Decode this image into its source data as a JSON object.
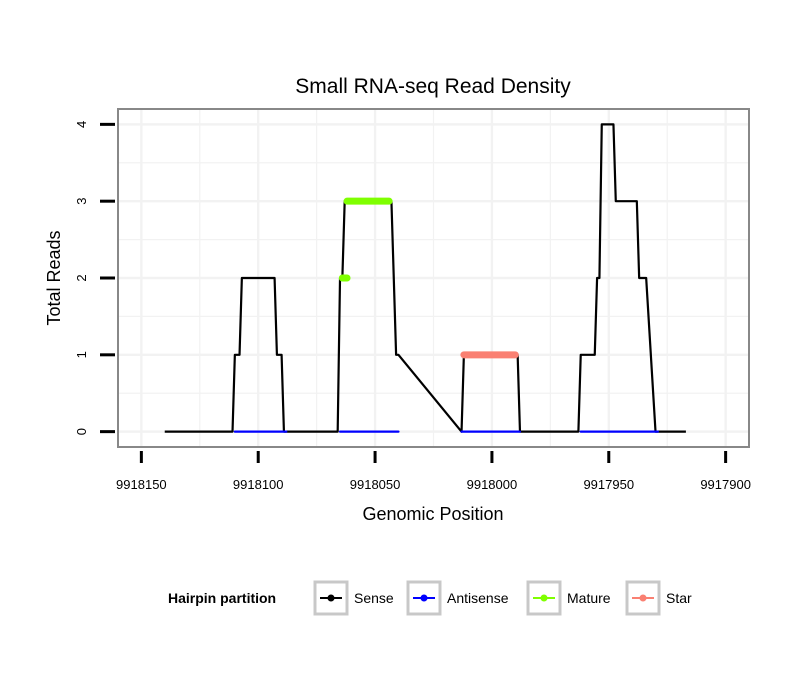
{
  "chart_data": {
    "type": "line",
    "title": "Small RNA-seq Read Density",
    "xlabel": "Genomic Position",
    "ylabel": "Total Reads",
    "xlim": [
      9918160,
      9917890
    ],
    "ylim": [
      -0.2,
      4.2
    ],
    "x_reversed": true,
    "x_ticks": [
      9918150,
      9918100,
      9918050,
      9918000,
      9917950,
      9917900
    ],
    "x_tick_labels": [
      "9918150",
      "9918100",
      "9918050",
      "9918000",
      "9917950",
      "9917900"
    ],
    "y_ticks": [
      0,
      1,
      2,
      3,
      4
    ],
    "y_tick_labels": [
      "0",
      "1",
      "2",
      "3",
      "4"
    ],
    "grid": true,
    "legend_title": "Hairpin partition",
    "legend_position": "bottom",
    "series": [
      {
        "name": "Sense",
        "color": "#000000",
        "x": [
          9918140,
          9918111,
          9918110,
          9918109,
          9918108,
          9918107,
          9918093,
          9918092,
          9918091,
          9918090,
          9918089,
          9918066,
          9918065,
          9918064,
          9918063,
          9918062,
          9918061,
          9918045,
          9918044,
          9918043,
          9918041,
          9918040,
          9918013,
          9918012,
          9917989,
          9917988,
          9917963,
          9917962,
          9917956,
          9917955,
          9917954,
          9917953,
          9917948,
          9917947,
          9917940,
          9917939,
          9917938,
          9917937,
          9917935,
          9917934,
          9917930,
          9917929,
          9917919,
          9917918,
          9917917
        ],
        "values": [
          0,
          0,
          1,
          1,
          1,
          2,
          2,
          1,
          1,
          1,
          0,
          0,
          2,
          2,
          3,
          3,
          3,
          3,
          3,
          3,
          1,
          1,
          0,
          1,
          1,
          0,
          0,
          1,
          1,
          2,
          2,
          4,
          4,
          3,
          3,
          3,
          3,
          2,
          2,
          2,
          0,
          0,
          0,
          0,
          0
        ]
      },
      {
        "name": "Antisense",
        "color": "#0000ff",
        "segments": [
          {
            "x": [
              9918110,
              9918088
            ],
            "values": [
              0,
              0
            ]
          },
          {
            "x": [
              9918065,
              9918040
            ],
            "values": [
              0,
              0
            ]
          },
          {
            "x": [
              9918013,
              9917988
            ],
            "values": [
              0,
              0
            ]
          },
          {
            "x": [
              9917962,
              9917929
            ],
            "values": [
              0,
              0
            ]
          }
        ]
      },
      {
        "name": "Mature",
        "color": "#7fff00",
        "segments": [
          {
            "x": [
              9918064,
              9918062
            ],
            "values": [
              2,
              2
            ]
          },
          {
            "x": [
              9918062,
              9918044
            ],
            "values": [
              3,
              3
            ]
          }
        ]
      },
      {
        "name": "Star",
        "color": "#fa8072",
        "segments": [
          {
            "x": [
              9918012,
              9917990
            ],
            "values": [
              1,
              1
            ]
          }
        ]
      }
    ]
  }
}
